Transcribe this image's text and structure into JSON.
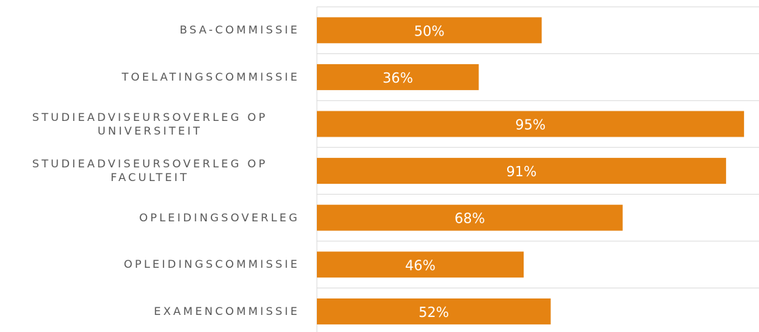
{
  "chart_data": {
    "type": "bar",
    "orientation": "horizontal",
    "categories": [
      "BSA-COMMISSIE",
      "TOELATINGSCOMMISSIE",
      "STUDIEADVISEURSOVERLEG OP UNIVERSITEIT",
      "STUDIEADVISEURSOVERLEG OP FACULTEIT",
      "OPLEIDINGSOVERLEG",
      "OPLEIDINGSCOMMISSIE",
      "EXAMENCOMMISSIE"
    ],
    "values": [
      50,
      36,
      95,
      91,
      68,
      46,
      52
    ],
    "value_labels": [
      "50%",
      "36%",
      "95%",
      "91%",
      "68%",
      "46%",
      "52%"
    ],
    "color": "#e58312"
  }
}
